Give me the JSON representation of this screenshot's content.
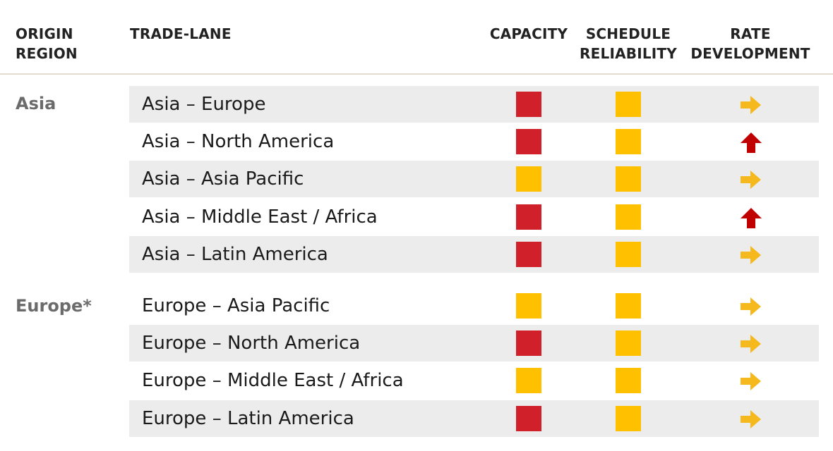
{
  "headers": {
    "origin_region": "ORIGIN\nREGION",
    "trade_lane": "TRADE-LANE",
    "capacity": "CAPACITY",
    "schedule_reliability": "SCHEDULE\nRELIABILITY",
    "rate_development": "RATE\nDEVELOPMENT"
  },
  "status_colors": {
    "red": "#d0202a",
    "amber": "#ffc000"
  },
  "trend_colors": {
    "flat": "#f5b91e",
    "up": "#c00000"
  },
  "regions": [
    {
      "name": "Asia",
      "lanes": [
        {
          "name": "Asia – Europe",
          "capacity": "red",
          "reliability": "amber",
          "rate": "flat"
        },
        {
          "name": "Asia – North America",
          "capacity": "red",
          "reliability": "amber",
          "rate": "up"
        },
        {
          "name": "Asia – Asia Pacific",
          "capacity": "amber",
          "reliability": "amber",
          "rate": "flat"
        },
        {
          "name": "Asia – Middle East / Africa",
          "capacity": "red",
          "reliability": "amber",
          "rate": "up"
        },
        {
          "name": "Asia – Latin America",
          "capacity": "red",
          "reliability": "amber",
          "rate": "flat"
        }
      ]
    },
    {
      "name": "Europe*",
      "lanes": [
        {
          "name": "Europe – Asia Pacific",
          "capacity": "amber",
          "reliability": "amber",
          "rate": "flat"
        },
        {
          "name": "Europe – North America",
          "capacity": "red",
          "reliability": "amber",
          "rate": "flat"
        },
        {
          "name": "Europe – Middle East / Africa",
          "capacity": "amber",
          "reliability": "amber",
          "rate": "flat"
        },
        {
          "name": "Europe – Latin America",
          "capacity": "red",
          "reliability": "amber",
          "rate": "flat"
        }
      ]
    }
  ]
}
